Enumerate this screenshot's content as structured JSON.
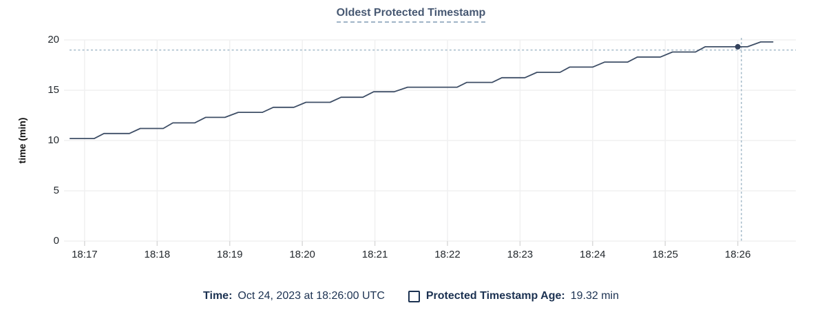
{
  "chart_data": {
    "type": "line",
    "line_style": "step",
    "title": "Oldest Protected Timestamp",
    "xlabel": "",
    "ylabel": "time (min)",
    "ylim": [
      0,
      20
    ],
    "y_ticks": [
      0,
      5,
      10,
      15,
      20
    ],
    "x_ticks": [
      "18:17",
      "18:18",
      "18:19",
      "18:20",
      "18:21",
      "18:22",
      "18:23",
      "18:24",
      "18:25",
      "18:26"
    ],
    "x_range": [
      "18:16:43",
      "18:26:48"
    ],
    "grid": true,
    "legend_position": "bottom",
    "series": [
      {
        "name": "Protected Timestamp Age",
        "unit": "min",
        "points": [
          [
            "18:16:48",
            10.2
          ],
          [
            "18:17:08",
            10.2
          ],
          [
            "18:17:16",
            10.7
          ],
          [
            "18:17:37",
            10.7
          ],
          [
            "18:17:46",
            11.2
          ],
          [
            "18:18:05",
            11.2
          ],
          [
            "18:18:13",
            11.75
          ],
          [
            "18:18:31",
            11.75
          ],
          [
            "18:18:40",
            12.3
          ],
          [
            "18:18:56",
            12.3
          ],
          [
            "18:19:07",
            12.8
          ],
          [
            "18:19:27",
            12.8
          ],
          [
            "18:19:36",
            13.3
          ],
          [
            "18:19:53",
            13.3
          ],
          [
            "18:20:03",
            13.8
          ],
          [
            "18:20:23",
            13.8
          ],
          [
            "18:20:32",
            14.3
          ],
          [
            "18:20:50",
            14.3
          ],
          [
            "18:20:59",
            14.85
          ],
          [
            "18:21:16",
            14.85
          ],
          [
            "18:21:27",
            15.3
          ],
          [
            "18:22:08",
            15.3
          ],
          [
            "18:22:16",
            15.78
          ],
          [
            "18:22:37",
            15.78
          ],
          [
            "18:22:45",
            16.25
          ],
          [
            "18:23:04",
            16.25
          ],
          [
            "18:23:14",
            16.78
          ],
          [
            "18:23:33",
            16.78
          ],
          [
            "18:23:41",
            17.3
          ],
          [
            "18:24:00",
            17.3
          ],
          [
            "18:24:10",
            17.8
          ],
          [
            "18:24:29",
            17.8
          ],
          [
            "18:24:37",
            18.3
          ],
          [
            "18:24:56",
            18.3
          ],
          [
            "18:25:06",
            18.8
          ],
          [
            "18:25:25",
            18.8
          ],
          [
            "18:25:33",
            19.32
          ],
          [
            "18:26:08",
            19.32
          ],
          [
            "18:26:19",
            19.8
          ],
          [
            "18:26:29",
            19.8
          ]
        ]
      }
    ],
    "crosshair": {
      "x": "18:26:03",
      "y": 19.0
    },
    "highlighted_point": {
      "x": "18:26:00",
      "y": 19.32
    }
  },
  "legend": {
    "time_label": "Time:",
    "time_value": "Oct 24, 2023 at 18:26:00 UTC",
    "series_label": "Protected Timestamp Age:",
    "series_value": "19.32 min"
  },
  "colors": {
    "line": "#3e4e66",
    "marker": "#33415c",
    "crosshair": "#a4bac9",
    "grid": "#f0f0f1",
    "axis_tick": "#d9d9d9",
    "tick_text": "#24292e",
    "title": "#475872",
    "title_underline": "#9fb3c6",
    "legend_text": "#1b3151"
  }
}
